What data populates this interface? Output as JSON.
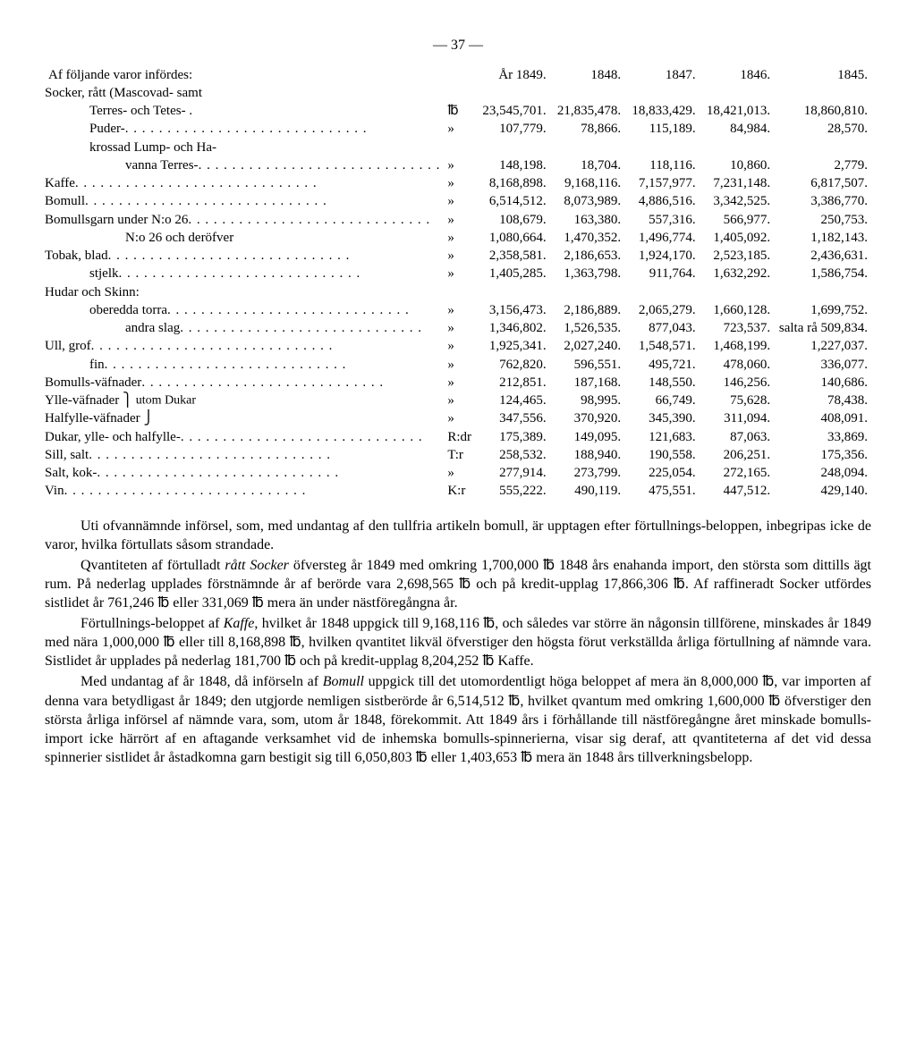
{
  "page_number": "—   37   —",
  "heading": "Af följande varor infördes:",
  "year_labels": [
    "År 1849.",
    "1848.",
    "1847.",
    "1846.",
    "1845."
  ],
  "rows": [
    {
      "label": "Socker, rått (Mascovad- samt",
      "unit": "",
      "vals": [
        "",
        "",
        "",
        "",
        ""
      ],
      "indent": 0,
      "dots": false
    },
    {
      "label": "Terres- och Tetes- .",
      "unit": "℔",
      "vals": [
        "23,545,701.",
        "21,835,478.",
        "18,833,429.",
        "18,421,013.",
        "18,860,810."
      ],
      "indent": 2,
      "dots": false
    },
    {
      "label": "Puder-",
      "unit": "»",
      "vals": [
        "107,779.",
        "78,866.",
        "115,189.",
        "84,984.",
        "28,570."
      ],
      "indent": 2,
      "dots": true
    },
    {
      "label": "krossad Lump- och Ha-",
      "unit": "",
      "vals": [
        "",
        "",
        "",
        "",
        ""
      ],
      "indent": 2,
      "dots": false
    },
    {
      "label": "vanna Terres-",
      "unit": "»",
      "vals": [
        "148,198.",
        "18,704.",
        "118,116.",
        "10,860.",
        "2,779."
      ],
      "indent": 3,
      "dots": true
    },
    {
      "label": "Kaffe",
      "unit": "»",
      "vals": [
        "8,168,898.",
        "9,168,116.",
        "7,157,977.",
        "7,231,148.",
        "6,817,507."
      ],
      "indent": 0,
      "dots": true
    },
    {
      "label": "Bomull",
      "unit": "»",
      "vals": [
        "6,514,512.",
        "8,073,989.",
        "4,886,516.",
        "3,342,525.",
        "3,386,770."
      ],
      "indent": 0,
      "dots": true
    },
    {
      "label": "Bomullsgarn under N:o 26",
      "unit": "»",
      "vals": [
        "108,679.",
        "163,380.",
        "557,316.",
        "566,977.",
        "250,753."
      ],
      "indent": 0,
      "dots": true
    },
    {
      "label": "N:o 26 och deröfver",
      "unit": "»",
      "vals": [
        "1,080,664.",
        "1,470,352.",
        "1,496,774.",
        "1,405,092.",
        "1,182,143."
      ],
      "indent": 3,
      "dots": false
    },
    {
      "label": "Tobak, blad",
      "unit": "»",
      "vals": [
        "2,358,581.",
        "2,186,653.",
        "1,924,170.",
        "2,523,185.",
        "2,436,631."
      ],
      "indent": 0,
      "dots": true
    },
    {
      "label": "stjelk",
      "unit": "»",
      "vals": [
        "1,405,285.",
        "1,363,798.",
        "911,764.",
        "1,632,292.",
        "1,586,754."
      ],
      "indent": 2,
      "dots": true
    },
    {
      "label": "Hudar och Skinn:",
      "unit": "",
      "vals": [
        "",
        "",
        "",
        "",
        ""
      ],
      "indent": 0,
      "dots": false
    },
    {
      "label": "oberedda torra",
      "unit": "»",
      "vals": [
        "3,156,473.",
        "2,186,889.",
        "2,065,279.",
        "1,660,128.",
        "1,699,752."
      ],
      "indent": 2,
      "dots": true
    },
    {
      "label": "andra slag",
      "unit": "»",
      "vals": [
        "1,346,802.",
        "1,526,535.",
        "877,043.",
        "723,537.",
        "salta rå 509,834."
      ],
      "indent": 3,
      "dots": true
    },
    {
      "label": "Ull, grof",
      "unit": "»",
      "vals": [
        "1,925,341.",
        "2,027,240.",
        "1,548,571.",
        "1,468,199.",
        "1,227,037."
      ],
      "indent": 0,
      "dots": true
    },
    {
      "label": "fin",
      "unit": "»",
      "vals": [
        "762,820.",
        "596,551.",
        "495,721.",
        "478,060.",
        "336,077."
      ],
      "indent": 2,
      "dots": true
    },
    {
      "label": "Bomulls-väfnader",
      "unit": "»",
      "vals": [
        "212,851.",
        "187,168.",
        "148,550.",
        "146,256.",
        "140,686."
      ],
      "indent": 0,
      "dots": true
    },
    {
      "label": "Ylle-väfnader   ⎫",
      "unit": "»",
      "vals": [
        "124,465.",
        "98,995.",
        "66,749.",
        "75,628.",
        "78,438."
      ],
      "indent": 0,
      "dots": false,
      "grouped_top": true,
      "group_label": "utom Dukar"
    },
    {
      "label": "Halfylle-väfnader ⎭",
      "unit": "»",
      "vals": [
        "347,556.",
        "370,920.",
        "345,390.",
        "311,094.",
        "408,091."
      ],
      "indent": 0,
      "dots": false,
      "grouped_bottom": true
    },
    {
      "label": "Dukar, ylle- och halfylle-",
      "unit": "R:dr",
      "vals": [
        "175,389.",
        "149,095.",
        "121,683.",
        "87,063.",
        "33,869."
      ],
      "indent": 0,
      "dots": true
    },
    {
      "label": "Sill, salt",
      "unit": "T:r",
      "vals": [
        "258,532.",
        "188,940.",
        "190,558.",
        "206,251.",
        "175,356."
      ],
      "indent": 0,
      "dots": true
    },
    {
      "label": "Salt, kok-",
      "unit": "»",
      "vals": [
        "277,914.",
        "273,799.",
        "225,054.",
        "272,165.",
        "248,094."
      ],
      "indent": 0,
      "dots": true
    },
    {
      "label": "Vin",
      "unit": "K:r",
      "vals": [
        "555,222.",
        "490,119.",
        "475,551.",
        "447,512.",
        "429,140."
      ],
      "indent": 0,
      "dots": true
    }
  ],
  "paragraphs": [
    "Uti ofvannämnde införsel, som, med undantag af den tullfria artikeln bomull, är upptagen efter förtullnings-beloppen, inbegripas icke de varor, hvilka förtullats såsom strandade.",
    "Qvantiteten af förtulladt <span class='em'>rått Socker</span> öfversteg år 1849 med omkring 1,700,000 ℔ 1848 års enahanda import, den största som dittills ägt rum. På nederlag upplades förstnämnde år af berörde vara 2,698,565 ℔ och på kredit-upplag 17,866,306 ℔. Af raffineradt Socker utfördes sistlidet år 761,246 ℔ eller 331,069 ℔ mera än under nästföregångna år.",
    "Förtullnings-beloppet af <span class='em'>Kaffe</span>, hvilket år 1848 uppgick till 9,168,116 ℔, och således var större än någonsin tillförene, minskades år 1849 med nära 1,000,000 ℔ eller till 8,168,898 ℔, hvilken qvantitet likväl öfverstiger den högsta förut verkställda årliga förtullning af nämnde vara. Sistlidet år upplades på nederlag 181,700 ℔ och på kredit-upplag 8,204,252 ℔ Kaffe.",
    "Med undantag af år 1848, då införseln af <span class='em'>Bomull</span> uppgick till det utomordentligt höga beloppet af mera än 8,000,000 ℔, var importen af denna vara betydligast år 1849; den utgjorde nemligen sistberörde år 6,514,512 ℔, hvilket qvantum med omkring 1,600,000 ℔ öfverstiger den största årliga införsel af nämnde vara, som, utom år 1848, förekommit. Att 1849 års i förhållande till nästföregångne året minskade bomulls-import icke härrört af en aftagande verksamhet vid de inhemska bomulls-spinnerierna, visar sig deraf, att qvantiteterna af det vid dessa spinnerier sistlidet år åstadkomna garn bestigit sig till 6,050,803 ℔ eller 1,403,653 ℔ mera än 1848 års tillverkningsbelopp."
  ]
}
